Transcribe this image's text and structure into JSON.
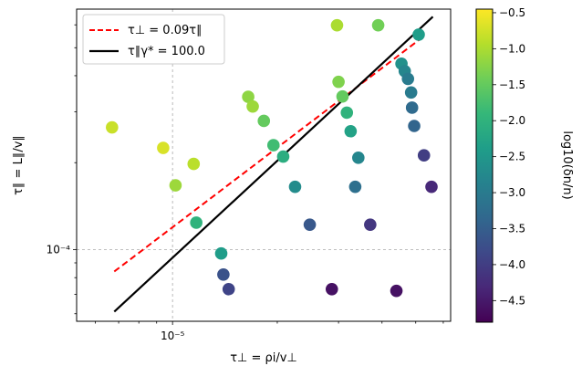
{
  "chart_data": {
    "type": "scatter",
    "xlabel": "τ⊥ = ρi/v⊥",
    "ylabel": "τ∥ = L∥/v∥",
    "xscale": "log",
    "yscale": "log",
    "xlim": [
      5.3e-06,
      6.3e-05
    ],
    "ylim": [
      5.65e-05,
      0.00068
    ],
    "x_ticks": [
      {
        "value": 1e-05,
        "label": "10⁻⁵"
      }
    ],
    "y_ticks": [
      {
        "value": 0.0001,
        "label": "10⁻⁴"
      }
    ],
    "reference_lines": [
      {
        "x": 1e-05,
        "style": "dashed",
        "color": "#aaaaaa"
      },
      {
        "y": 0.0001,
        "style": "dashed",
        "color": "#aaaaaa"
      }
    ],
    "legend_position": "top-left",
    "lines": [
      {
        "name": "τ⊥ = 0.09τ∥",
        "color": "#ff0000",
        "style": "dashed",
        "x": [
          6.8e-06,
          5.3e-05
        ],
        "y": [
          8.4e-05,
          0.00055
        ]
      },
      {
        "name": "τ∥γ* = 100.0",
        "color": "#000000",
        "style": "solid",
        "x": [
          6.8e-06,
          5.6e-05
        ],
        "y": [
          6.1e-05,
          0.00064
        ]
      }
    ],
    "colorbar": {
      "label": "log10(δn/n)",
      "range": [
        -4.8,
        -0.45
      ],
      "ticks": [
        -0.5,
        -1.0,
        -1.5,
        -2.0,
        -2.5,
        -3.0,
        -3.5,
        -4.0,
        -4.5
      ],
      "tick_labels": [
        "−0.5",
        "−1.0",
        "−1.5",
        "−2.0",
        "−2.5",
        "−3.0",
        "−3.5",
        "−4.0",
        "−4.5"
      ],
      "colormap": "viridis"
    },
    "points": [
      {
        "x": 6.7e-06,
        "y": 0.000265,
        "c": -0.8
      },
      {
        "x": 9.4e-06,
        "y": 0.000225,
        "c": -0.7
      },
      {
        "x": 1.02e-05,
        "y": 0.000167,
        "c": -1.1
      },
      {
        "x": 1.15e-05,
        "y": 0.000198,
        "c": -0.9
      },
      {
        "x": 1.17e-05,
        "y": 0.000124,
        "c": -2.0
      },
      {
        "x": 1.38e-05,
        "y": 9.7e-05,
        "c": -2.4
      },
      {
        "x": 1.4e-05,
        "y": 8.2e-05,
        "c": -3.7
      },
      {
        "x": 1.45e-05,
        "y": 7.3e-05,
        "c": -3.9
      },
      {
        "x": 1.65e-05,
        "y": 0.000338,
        "c": -1.2
      },
      {
        "x": 1.7e-05,
        "y": 0.000313,
        "c": -1.1
      },
      {
        "x": 1.83e-05,
        "y": 0.000279,
        "c": -1.5
      },
      {
        "x": 1.95e-05,
        "y": 0.00023,
        "c": -1.8
      },
      {
        "x": 2.08e-05,
        "y": 0.00021,
        "c": -2.1
      },
      {
        "x": 2.25e-05,
        "y": 0.000165,
        "c": -2.7
      },
      {
        "x": 2.48e-05,
        "y": 0.000122,
        "c": -3.6
      },
      {
        "x": 2.87e-05,
        "y": 7.3e-05,
        "c": -4.6
      },
      {
        "x": 2.97e-05,
        "y": 0.000598,
        "c": -1.0
      },
      {
        "x": 3e-05,
        "y": 0.000381,
        "c": -1.3
      },
      {
        "x": 3.08e-05,
        "y": 0.000339,
        "c": -1.5
      },
      {
        "x": 3.17e-05,
        "y": 0.000298,
        "c": -2.0
      },
      {
        "x": 3.25e-05,
        "y": 0.000257,
        "c": -2.3
      },
      {
        "x": 3.35e-05,
        "y": 0.000165,
        "c": -3.2
      },
      {
        "x": 3.42e-05,
        "y": 0.000208,
        "c": -2.8
      },
      {
        "x": 3.7e-05,
        "y": 0.000122,
        "c": -4.1
      },
      {
        "x": 3.9e-05,
        "y": 0.000598,
        "c": -1.4
      },
      {
        "x": 4.4e-05,
        "y": 7.2e-05,
        "c": -4.6
      },
      {
        "x": 4.55e-05,
        "y": 0.00044,
        "c": -2.6
      },
      {
        "x": 4.65e-05,
        "y": 0.000415,
        "c": -2.8
      },
      {
        "x": 4.75e-05,
        "y": 0.00039,
        "c": -3.0
      },
      {
        "x": 4.85e-05,
        "y": 0.00035,
        "c": -3.0
      },
      {
        "x": 4.88e-05,
        "y": 0.00031,
        "c": -3.3
      },
      {
        "x": 4.95e-05,
        "y": 0.000268,
        "c": -3.4
      },
      {
        "x": 5.1e-05,
        "y": 0.000555,
        "c": -2.4
      },
      {
        "x": 5.28e-05,
        "y": 0.000212,
        "c": -4.0
      },
      {
        "x": 5.55e-05,
        "y": 0.000165,
        "c": -4.3
      }
    ]
  }
}
